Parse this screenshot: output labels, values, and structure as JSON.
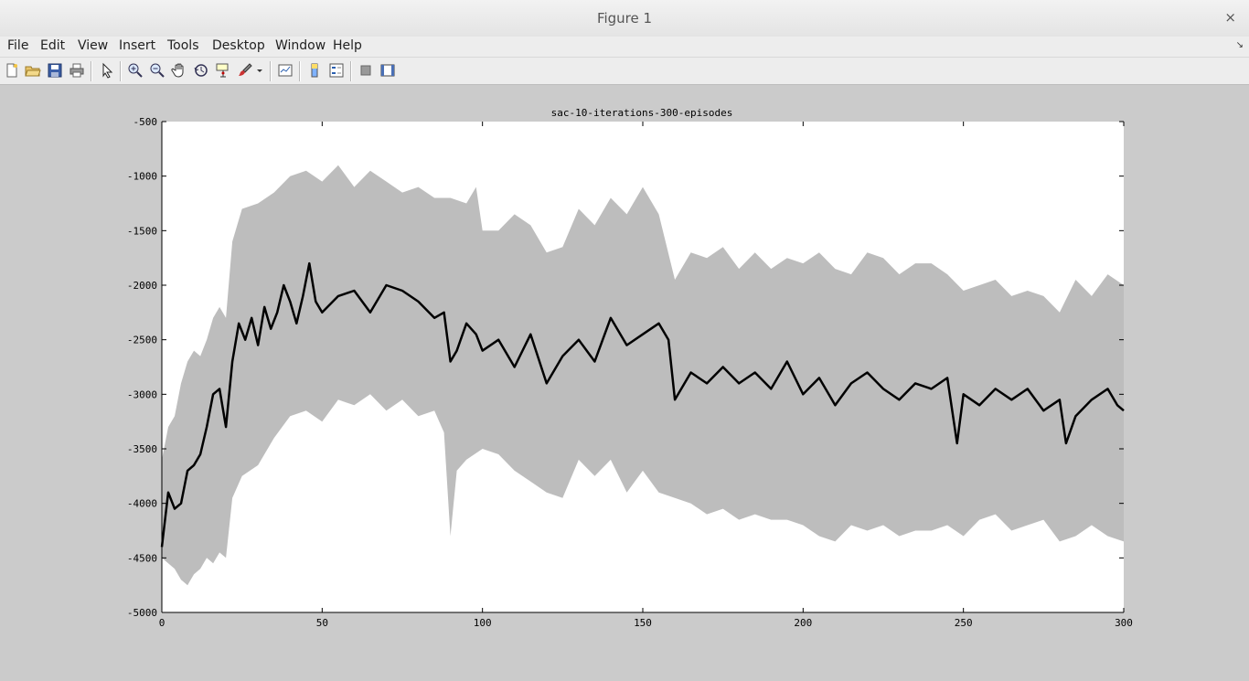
{
  "window": {
    "title": "Figure 1",
    "close_glyph": "×"
  },
  "menu": {
    "items": [
      "File",
      "Edit",
      "View",
      "Insert",
      "Tools",
      "Desktop",
      "Window",
      "Help"
    ],
    "dock_glyph": "↘"
  },
  "toolbar": {
    "buttons": [
      {
        "name": "new-figure-icon"
      },
      {
        "name": "open-file-icon"
      },
      {
        "name": "save-icon"
      },
      {
        "name": "print-icon"
      },
      {
        "name": "select-arrow-icon"
      },
      {
        "name": "zoom-in-icon"
      },
      {
        "name": "zoom-out-icon"
      },
      {
        "name": "pan-hand-icon"
      },
      {
        "name": "rotate-3d-icon"
      },
      {
        "name": "data-cursor-icon"
      },
      {
        "name": "brush-icon"
      },
      {
        "name": "brush-dropdown-icon"
      },
      {
        "name": "link-plot-icon"
      },
      {
        "name": "colorbar-icon"
      },
      {
        "name": "legend-icon"
      },
      {
        "name": "hide-plot-tools-icon"
      },
      {
        "name": "show-plot-tools-icon"
      }
    ]
  },
  "chart_data": {
    "type": "line",
    "title": "sac-10-iterations-300-episodes",
    "xlim": [
      0,
      300
    ],
    "ylim": [
      -5000,
      -500
    ],
    "xticks": [
      0,
      50,
      100,
      150,
      200,
      250,
      300
    ],
    "yticks": [
      -500,
      -1000,
      -1500,
      -2000,
      -2500,
      -3000,
      -3500,
      -4000,
      -4500,
      -5000
    ],
    "xtick_labels": [
      "0",
      "50",
      "100",
      "150",
      "200",
      "250",
      "300"
    ],
    "ytick_labels": [
      "-500",
      "-1000",
      "-1500",
      "-2000",
      "-2500",
      "-3000",
      "-3500",
      "-4000",
      "-4500",
      "-5000"
    ],
    "grid": false,
    "colors": {
      "mean": "#000000",
      "band": "#bdbdbd",
      "axes_bg": "#ffffff"
    },
    "series": [
      {
        "role": "mean",
        "x": [
          0,
          2,
          4,
          6,
          8,
          10,
          12,
          14,
          16,
          18,
          20,
          22,
          24,
          26,
          28,
          30,
          32,
          34,
          36,
          38,
          40,
          42,
          44,
          46,
          48,
          50,
          55,
          60,
          65,
          70,
          75,
          80,
          85,
          88,
          90,
          92,
          95,
          98,
          100,
          105,
          110,
          115,
          120,
          125,
          130,
          135,
          140,
          145,
          150,
          155,
          158,
          160,
          165,
          170,
          175,
          180,
          185,
          190,
          195,
          200,
          205,
          210,
          215,
          220,
          225,
          230,
          235,
          240,
          245,
          248,
          250,
          255,
          260,
          265,
          270,
          275,
          280,
          282,
          285,
          290,
          295,
          298,
          300
        ],
        "y": [
          -4400,
          -3900,
          -4050,
          -4000,
          -3700,
          -3650,
          -3550,
          -3300,
          -3000,
          -2950,
          -3300,
          -2700,
          -2350,
          -2500,
          -2300,
          -2550,
          -2200,
          -2400,
          -2250,
          -2000,
          -2150,
          -2350,
          -2100,
          -1800,
          -2150,
          -2250,
          -2100,
          -2050,
          -2250,
          -2000,
          -2050,
          -2150,
          -2300,
          -2250,
          -2700,
          -2600,
          -2350,
          -2450,
          -2600,
          -2500,
          -2750,
          -2450,
          -2900,
          -2650,
          -2500,
          -2700,
          -2300,
          -2550,
          -2450,
          -2350,
          -2500,
          -3050,
          -2800,
          -2900,
          -2750,
          -2900,
          -2800,
          -2950,
          -2700,
          -3000,
          -2850,
          -3100,
          -2900,
          -2800,
          -2950,
          -3050,
          -2900,
          -2950,
          -2850,
          -3450,
          -3000,
          -3100,
          -2950,
          -3050,
          -2950,
          -3150,
          -3050,
          -3450,
          -3200,
          -3050,
          -2950,
          -3100,
          -3150
        ]
      },
      {
        "role": "upper",
        "x": [
          0,
          2,
          4,
          6,
          8,
          10,
          12,
          14,
          16,
          18,
          20,
          22,
          25,
          30,
          35,
          40,
          45,
          50,
          55,
          60,
          65,
          70,
          75,
          80,
          85,
          90,
          95,
          98,
          100,
          105,
          110,
          115,
          120,
          125,
          130,
          135,
          140,
          145,
          150,
          155,
          160,
          165,
          170,
          175,
          180,
          185,
          190,
          195,
          200,
          205,
          210,
          215,
          220,
          225,
          230,
          235,
          240,
          245,
          250,
          255,
          260,
          265,
          270,
          275,
          280,
          285,
          290,
          295,
          300
        ],
        "y": [
          -3600,
          -3300,
          -3200,
          -2900,
          -2700,
          -2600,
          -2650,
          -2500,
          -2300,
          -2200,
          -2300,
          -1600,
          -1300,
          -1250,
          -1150,
          -1000,
          -950,
          -1050,
          -900,
          -1100,
          -950,
          -1050,
          -1150,
          -1100,
          -1200,
          -1200,
          -1250,
          -1100,
          -1500,
          -1500,
          -1350,
          -1450,
          -1700,
          -1650,
          -1300,
          -1450,
          -1200,
          -1350,
          -1100,
          -1350,
          -1950,
          -1700,
          -1750,
          -1650,
          -1850,
          -1700,
          -1850,
          -1750,
          -1800,
          -1700,
          -1850,
          -1900,
          -1700,
          -1750,
          -1900,
          -1800,
          -1800,
          -1900,
          -2050,
          -2000,
          -1950,
          -2100,
          -2050,
          -2100,
          -2250,
          -1950,
          -2100,
          -1900,
          -2000
        ]
      },
      {
        "role": "lower",
        "x": [
          0,
          2,
          4,
          6,
          8,
          10,
          12,
          14,
          16,
          18,
          20,
          22,
          25,
          30,
          35,
          40,
          45,
          50,
          55,
          60,
          65,
          70,
          75,
          80,
          85,
          88,
          90,
          92,
          95,
          100,
          105,
          110,
          115,
          120,
          125,
          130,
          135,
          140,
          145,
          150,
          155,
          160,
          165,
          170,
          175,
          180,
          185,
          190,
          195,
          200,
          205,
          210,
          215,
          220,
          225,
          230,
          235,
          240,
          245,
          250,
          255,
          260,
          265,
          270,
          275,
          280,
          285,
          290,
          295,
          300
        ],
        "y": [
          -4500,
          -4550,
          -4600,
          -4700,
          -4750,
          -4650,
          -4600,
          -4500,
          -4550,
          -4450,
          -4500,
          -3950,
          -3750,
          -3650,
          -3400,
          -3200,
          -3150,
          -3250,
          -3050,
          -3100,
          -3000,
          -3150,
          -3050,
          -3200,
          -3150,
          -3350,
          -4300,
          -3700,
          -3600,
          -3500,
          -3550,
          -3700,
          -3800,
          -3900,
          -3950,
          -3600,
          -3750,
          -3600,
          -3900,
          -3700,
          -3900,
          -3950,
          -4000,
          -4100,
          -4050,
          -4150,
          -4100,
          -4150,
          -4150,
          -4200,
          -4300,
          -4350,
          -4200,
          -4250,
          -4200,
          -4300,
          -4250,
          -4250,
          -4200,
          -4300,
          -4150,
          -4100,
          -4250,
          -4200,
          -4150,
          -4350,
          -4300,
          -4200,
          -4300,
          -4350
        ]
      }
    ]
  }
}
